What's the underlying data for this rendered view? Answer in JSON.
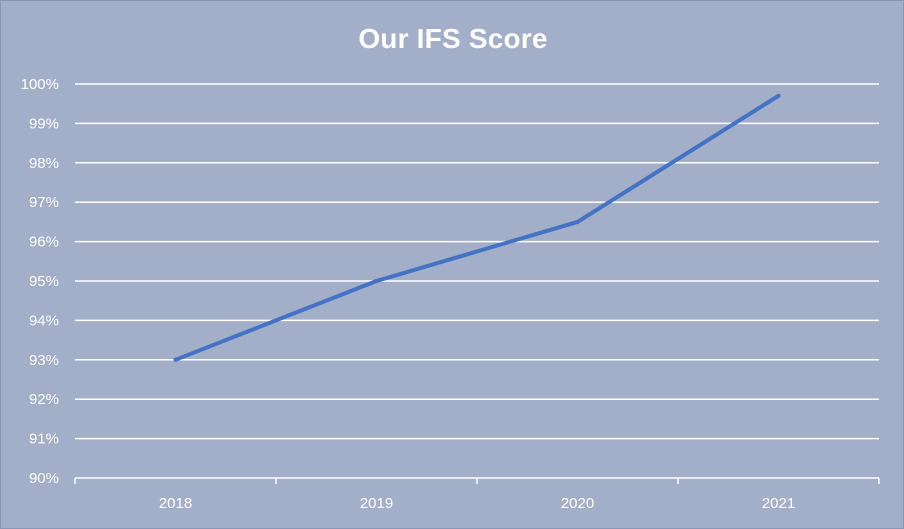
{
  "chart_data": {
    "type": "line",
    "title": "Our IFS Score",
    "xlabel": "",
    "ylabel": "",
    "categories": [
      "2018",
      "2019",
      "2020",
      "2021"
    ],
    "series": [
      {
        "values": [
          93,
          95,
          96.5,
          99.7
        ]
      }
    ],
    "ylim": [
      90,
      100
    ],
    "ytick_step": 1,
    "ytick_suffix": "%",
    "grid": true,
    "legend": "none",
    "colors": {
      "background": "#a3aec9",
      "line": "#4472c4",
      "grid": "#ffffff",
      "text": "#ffffff"
    }
  }
}
